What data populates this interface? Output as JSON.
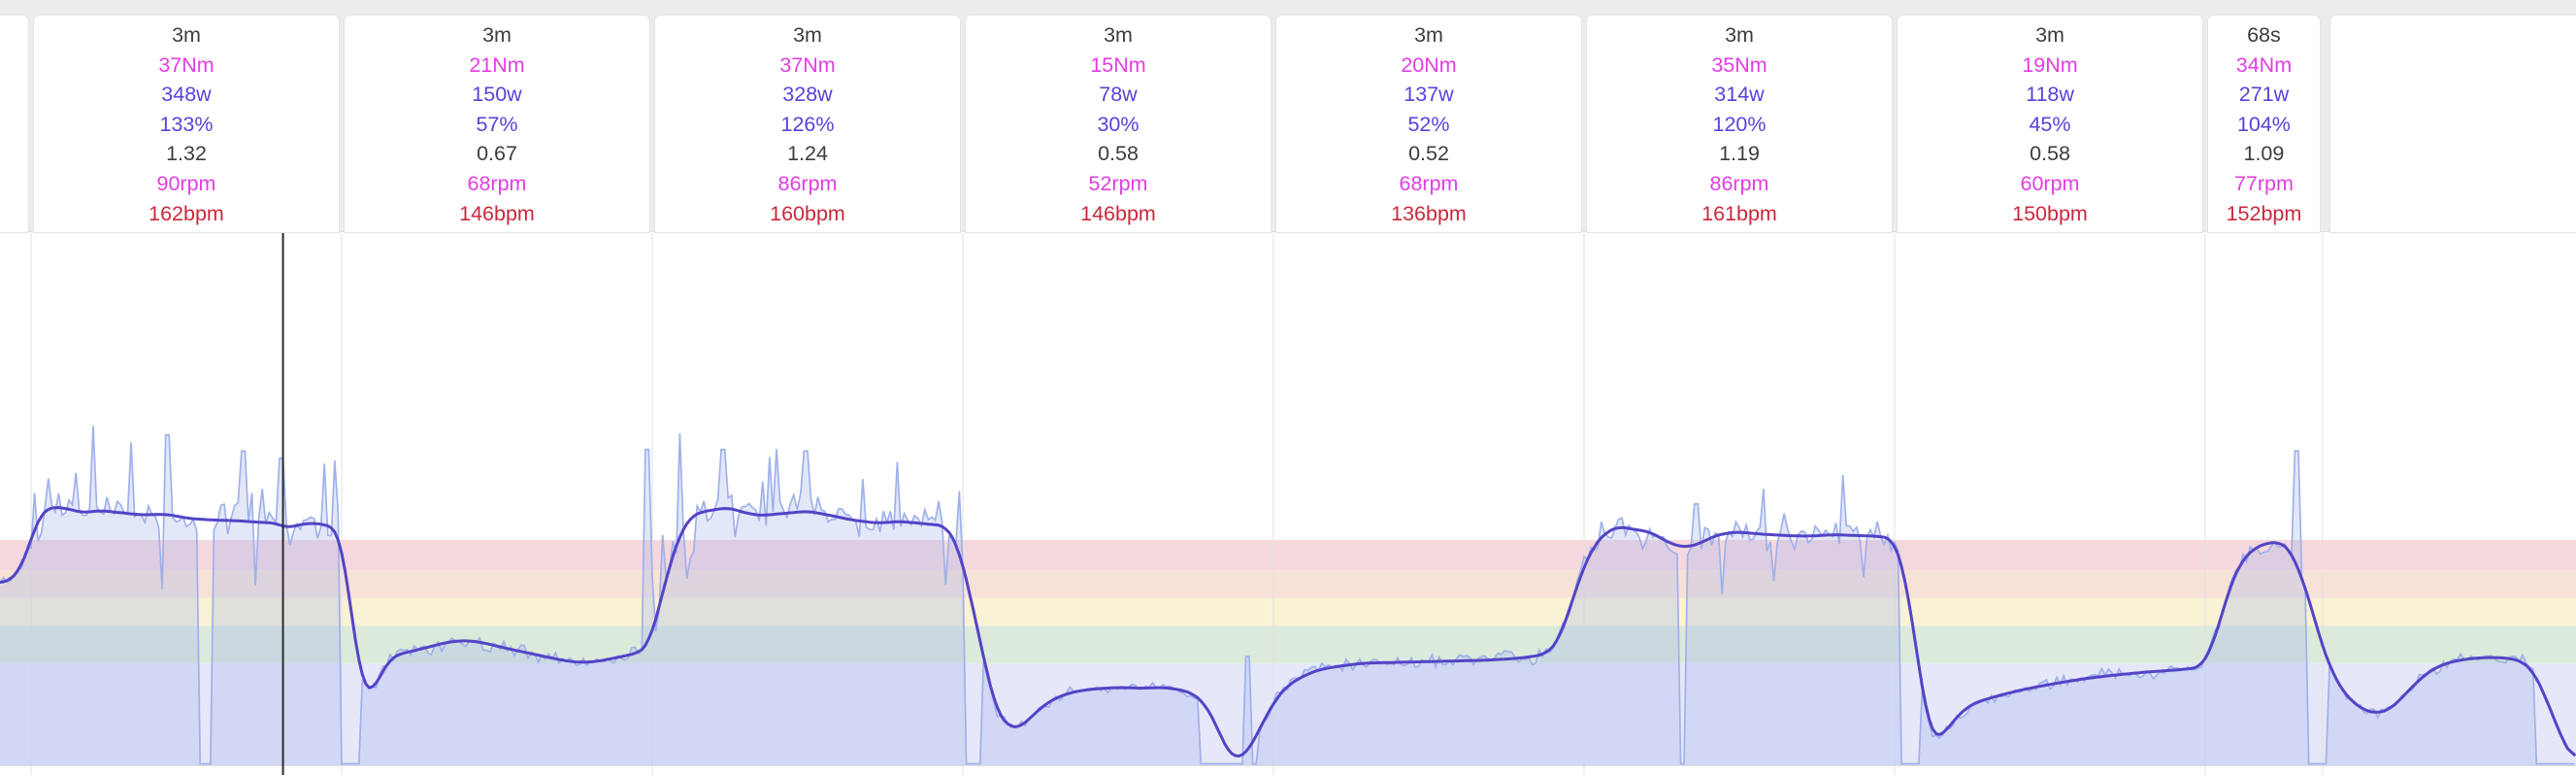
{
  "app": {
    "view_name": "workout-interval-analysis"
  },
  "colors": {
    "page_top_strip": "#ececec",
    "card_border": "#e4e4e4",
    "duration_text": "#3d3d3d",
    "torque_text": "#e23ee2",
    "power_text": "#5b41d8",
    "percent_text": "#5b41d8",
    "ratio_text": "#3d3d3d",
    "cadence_text": "#e23ee2",
    "hr_text": "#c9283c",
    "raw_line": "#a0b1ea",
    "raw_fill": "rgba(162,178,236,0.30)",
    "smooth_line": "#5344c6",
    "cursor": "#2b2b2b",
    "gridline": "#e2e2e2",
    "chart_bottom_line": "#dedede"
  },
  "intervals": [
    {
      "duration": "3m",
      "torque": "37Nm",
      "power": "348w",
      "percent": "133%",
      "ratio": "1.32",
      "cadence": "90rpm",
      "hr": "162bpm",
      "start_s": 0,
      "end_s": 180,
      "avg_watts": 348
    },
    {
      "duration": "3m",
      "torque": "21Nm",
      "power": "150w",
      "percent": "57%",
      "ratio": "0.67",
      "cadence": "68rpm",
      "hr": "146bpm",
      "start_s": 180,
      "end_s": 360,
      "avg_watts": 150
    },
    {
      "duration": "3m",
      "torque": "37Nm",
      "power": "328w",
      "percent": "126%",
      "ratio": "1.24",
      "cadence": "86rpm",
      "hr": "160bpm",
      "start_s": 360,
      "end_s": 540,
      "avg_watts": 328
    },
    {
      "duration": "3m",
      "torque": "15Nm",
      "power": "78w",
      "percent": "30%",
      "ratio": "0.58",
      "cadence": "52rpm",
      "hr": "146bpm",
      "start_s": 540,
      "end_s": 720,
      "avg_watts": 78
    },
    {
      "duration": "3m",
      "torque": "20Nm",
      "power": "137w",
      "percent": "52%",
      "ratio": "0.52",
      "cadence": "68rpm",
      "hr": "136bpm",
      "start_s": 720,
      "end_s": 900,
      "avg_watts": 137
    },
    {
      "duration": "3m",
      "torque": "35Nm",
      "power": "314w",
      "percent": "120%",
      "ratio": "1.19",
      "cadence": "86rpm",
      "hr": "161bpm",
      "start_s": 900,
      "end_s": 1080,
      "avg_watts": 314
    },
    {
      "duration": "3m",
      "torque": "19Nm",
      "power": "118w",
      "percent": "45%",
      "ratio": "0.58",
      "cadence": "60rpm",
      "hr": "150bpm",
      "start_s": 1080,
      "end_s": 1260,
      "avg_watts": 118
    },
    {
      "duration": "68s",
      "torque": "34Nm",
      "power": "271w",
      "percent": "104%",
      "ratio": "1.09",
      "cadence": "77rpm",
      "hr": "152bpm",
      "start_s": 1260,
      "end_s": 1328,
      "avg_watts": 271
    }
  ],
  "chart_data": {
    "type": "area",
    "title": "",
    "x_unit": "seconds",
    "y_unit": "watts",
    "x_range_s": [
      -18,
      1475
    ],
    "grid_on": true,
    "legend": "none",
    "cursor_time_s": 146,
    "zones": [
      {
        "name": "zone-1",
        "from_w": 0,
        "to_w": 139,
        "color": "#e6e7f8"
      },
      {
        "name": "zone-2",
        "from_w": 139,
        "to_w": 190,
        "color": "#dceadb"
      },
      {
        "name": "zone-3",
        "from_w": 190,
        "to_w": 228,
        "color": "#faf2d4"
      },
      {
        "name": "zone-4",
        "from_w": 228,
        "to_w": 266,
        "color": "#f7e2d8"
      },
      {
        "name": "zone-5",
        "from_w": 266,
        "to_w": 307,
        "color": "#f5d8de"
      }
    ],
    "gridline_times_s": [
      0,
      180,
      360,
      540,
      720,
      900,
      1080,
      1260,
      1328
    ],
    "series": [
      {
        "name": "power-smoothed",
        "style": "line",
        "waypoints_t_w": [
          [
            -18,
            248
          ],
          [
            -12,
            252
          ],
          [
            -6,
            268
          ],
          [
            -1,
            300
          ],
          [
            3,
            330
          ],
          [
            7,
            346
          ],
          [
            12,
            352
          ],
          [
            20,
            350
          ],
          [
            30,
            344
          ],
          [
            40,
            347
          ],
          [
            52,
            344
          ],
          [
            64,
            341
          ],
          [
            78,
            342
          ],
          [
            92,
            336
          ],
          [
            106,
            334
          ],
          [
            120,
            333
          ],
          [
            132,
            331
          ],
          [
            142,
            330
          ],
          [
            148,
            323
          ],
          [
            154,
            327
          ],
          [
            162,
            330
          ],
          [
            170,
            328
          ],
          [
            177,
            322
          ],
          [
            180,
            300
          ],
          [
            183,
            255
          ],
          [
            186,
            200
          ],
          [
            189,
            150
          ],
          [
            192,
            112
          ],
          [
            195,
            98
          ],
          [
            199,
            105
          ],
          [
            203,
            125
          ],
          [
            208,
            145
          ],
          [
            214,
            152
          ],
          [
            222,
            156
          ],
          [
            232,
            162
          ],
          [
            242,
            168
          ],
          [
            252,
            170
          ],
          [
            262,
            167
          ],
          [
            274,
            160
          ],
          [
            286,
            154
          ],
          [
            298,
            148
          ],
          [
            308,
            143
          ],
          [
            318,
            140
          ],
          [
            326,
            141
          ],
          [
            334,
            144
          ],
          [
            342,
            148
          ],
          [
            352,
            153
          ],
          [
            358,
            165
          ],
          [
            364,
            215
          ],
          [
            370,
            272
          ],
          [
            376,
            314
          ],
          [
            382,
            338
          ],
          [
            388,
            345
          ],
          [
            396,
            348
          ],
          [
            404,
            351
          ],
          [
            412,
            345
          ],
          [
            422,
            340
          ],
          [
            436,
            343
          ],
          [
            450,
            346
          ],
          [
            462,
            341
          ],
          [
            476,
            334
          ],
          [
            490,
            330
          ],
          [
            504,
            332
          ],
          [
            518,
            329
          ],
          [
            530,
            326
          ],
          [
            537,
            300
          ],
          [
            543,
            245
          ],
          [
            549,
            180
          ],
          [
            555,
            115
          ],
          [
            560,
            72
          ],
          [
            566,
            54
          ],
          [
            572,
            50
          ],
          [
            578,
            62
          ],
          [
            586,
            80
          ],
          [
            594,
            92
          ],
          [
            604,
            100
          ],
          [
            616,
            104
          ],
          [
            630,
            106
          ],
          [
            644,
            105
          ],
          [
            656,
            106
          ],
          [
            666,
            103
          ],
          [
            674,
            97
          ],
          [
            680,
            84
          ],
          [
            686,
            60
          ],
          [
            691,
            30
          ],
          [
            696,
            12
          ],
          [
            700,
            10
          ],
          [
            705,
            18
          ],
          [
            710,
            40
          ],
          [
            716,
            68
          ],
          [
            722,
            92
          ],
          [
            728,
            108
          ],
          [
            736,
            120
          ],
          [
            746,
            130
          ],
          [
            758,
            135
          ],
          [
            772,
            139
          ],
          [
            788,
            140
          ],
          [
            806,
            141
          ],
          [
            824,
            142
          ],
          [
            842,
            143
          ],
          [
            858,
            145
          ],
          [
            870,
            148
          ],
          [
            878,
            152
          ],
          [
            885,
            168
          ],
          [
            892,
            215
          ],
          [
            899,
            266
          ],
          [
            906,
            300
          ],
          [
            913,
            318
          ],
          [
            920,
            325
          ],
          [
            930,
            321
          ],
          [
            938,
            318
          ],
          [
            944,
            310
          ],
          [
            952,
            300
          ],
          [
            960,
            297
          ],
          [
            968,
            303
          ],
          [
            976,
            313
          ],
          [
            988,
            318
          ],
          [
            1002,
            315
          ],
          [
            1016,
            313
          ],
          [
            1030,
            312
          ],
          [
            1044,
            314
          ],
          [
            1058,
            313
          ],
          [
            1070,
            312
          ],
          [
            1079,
            309
          ],
          [
            1085,
            270
          ],
          [
            1090,
            200
          ],
          [
            1095,
            120
          ],
          [
            1099,
            60
          ],
          [
            1103,
            36
          ],
          [
            1108,
            42
          ],
          [
            1114,
            60
          ],
          [
            1121,
            78
          ],
          [
            1130,
            88
          ],
          [
            1142,
            96
          ],
          [
            1156,
            104
          ],
          [
            1172,
            111
          ],
          [
            1190,
            118
          ],
          [
            1208,
            123
          ],
          [
            1226,
            127
          ],
          [
            1244,
            130
          ],
          [
            1257,
            133
          ],
          [
            1263,
            155
          ],
          [
            1269,
            200
          ],
          [
            1275,
            248
          ],
          [
            1281,
            278
          ],
          [
            1288,
            295
          ],
          [
            1296,
            303
          ],
          [
            1303,
            304
          ],
          [
            1309,
            295
          ],
          [
            1315,
            262
          ],
          [
            1321,
            220
          ],
          [
            1327,
            168
          ],
          [
            1333,
            130
          ],
          [
            1339,
            103
          ],
          [
            1346,
            85
          ],
          [
            1353,
            74
          ],
          [
            1360,
            71
          ],
          [
            1367,
            76
          ],
          [
            1374,
            92
          ],
          [
            1382,
            112
          ],
          [
            1391,
            130
          ],
          [
            1401,
            140
          ],
          [
            1412,
            145
          ],
          [
            1424,
            147
          ],
          [
            1436,
            146
          ],
          [
            1444,
            141
          ],
          [
            1450,
            128
          ],
          [
            1456,
            100
          ],
          [
            1462,
            64
          ],
          [
            1468,
            30
          ],
          [
            1472,
            13
          ],
          [
            1475,
            6
          ]
        ]
      },
      {
        "name": "power-raw",
        "style": "area",
        "derived_from": "power-smoothed",
        "noise_segments": [
          {
            "from_s": -18,
            "to_s": 0,
            "amp_w": 12,
            "spiky": false
          },
          {
            "from_s": 0,
            "to_s": 180,
            "amp_w": 30,
            "spiky": true
          },
          {
            "from_s": 180,
            "to_s": 360,
            "amp_w": 13,
            "spiky": false
          },
          {
            "from_s": 360,
            "to_s": 540,
            "amp_w": 26,
            "spiky": true
          },
          {
            "from_s": 540,
            "to_s": 720,
            "amp_w": 8,
            "spiky": false
          },
          {
            "from_s": 720,
            "to_s": 900,
            "amp_w": 12,
            "spiky": false
          },
          {
            "from_s": 900,
            "to_s": 1080,
            "amp_w": 24,
            "spiky": true
          },
          {
            "from_s": 1080,
            "to_s": 1260,
            "amp_w": 10,
            "spiky": false
          },
          {
            "from_s": 1260,
            "to_s": 1328,
            "amp_w": 16,
            "spiky": false
          },
          {
            "from_s": 1328,
            "to_s": 1475,
            "amp_w": 9,
            "spiky": false
          }
        ],
        "dropouts_s": [
          [
            97,
            100
          ],
          [
            102,
            104
          ],
          [
            180,
            190
          ],
          [
            541,
            550
          ],
          [
            678,
            702
          ],
          [
            707,
            710
          ],
          [
            955,
            958
          ],
          [
            1084,
            1094
          ],
          [
            1319,
            1330
          ],
          [
            1451,
            1475
          ]
        ],
        "spike_points_t_w": [
          [
            36,
            462
          ],
          [
            58,
            440
          ],
          [
            79,
            450
          ],
          [
            123,
            428
          ],
          [
            145,
            418
          ],
          [
            176,
            415
          ],
          [
            357,
            430
          ],
          [
            376,
            452
          ],
          [
            401,
            430
          ],
          [
            428,
            420
          ],
          [
            449,
            428
          ],
          [
            705,
            148
          ],
          [
            965,
            356
          ],
          [
            1313,
            428
          ]
        ]
      }
    ]
  }
}
